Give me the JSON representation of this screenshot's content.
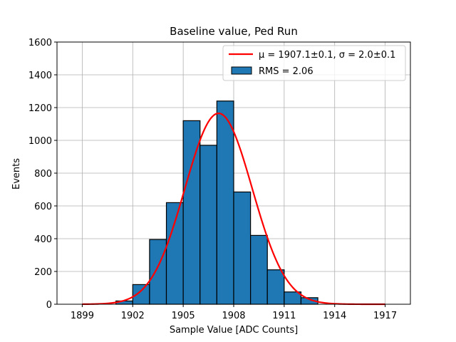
{
  "chart_data": {
    "type": "bar",
    "title": "Baseline value, Ped Run",
    "xlabel": "Sample Value [ADC Counts]",
    "ylabel": "Events",
    "xlim": [
      1897.5,
      1918.5
    ],
    "ylim": [
      0,
      1600
    ],
    "xticks": [
      1899,
      1902,
      1905,
      1908,
      1911,
      1914,
      1917
    ],
    "yticks": [
      0,
      200,
      400,
      600,
      800,
      1000,
      1200,
      1400,
      1600
    ],
    "grid": true,
    "legend_position": "top-right",
    "series": [
      {
        "name": "RMS = 2.06",
        "kind": "histogram",
        "color": "#1f77b4",
        "edgecolor": "#000000",
        "bins": [
          {
            "x0": 1901,
            "x1": 1902,
            "value": 20
          },
          {
            "x0": 1902,
            "x1": 1903,
            "value": 120
          },
          {
            "x0": 1903,
            "x1": 1904,
            "value": 395
          },
          {
            "x0": 1904,
            "x1": 1905,
            "value": 620
          },
          {
            "x0": 1905,
            "x1": 1906,
            "value": 1120
          },
          {
            "x0": 1906,
            "x1": 1907,
            "value": 970
          },
          {
            "x0": 1907,
            "x1": 1908,
            "value": 1240
          },
          {
            "x0": 1908,
            "x1": 1909,
            "value": 685
          },
          {
            "x0": 1909,
            "x1": 1910,
            "value": 420
          },
          {
            "x0": 1910,
            "x1": 1911,
            "value": 210
          },
          {
            "x0": 1911,
            "x1": 1912,
            "value": 75
          },
          {
            "x0": 1912,
            "x1": 1913,
            "value": 40
          }
        ]
      },
      {
        "name": "μ = 1907.1±0.1, σ = 2.0±0.1",
        "kind": "gaussian_fit",
        "color": "#ff0000",
        "mu": 1907.1,
        "sigma": 2.0,
        "amplitude": 1165,
        "x_range": [
          1899,
          1917
        ]
      }
    ]
  },
  "legend": {
    "fit_label": "μ = 1907.1±0.1, σ = 2.0±0.1",
    "hist_label": "RMS = 2.06"
  }
}
